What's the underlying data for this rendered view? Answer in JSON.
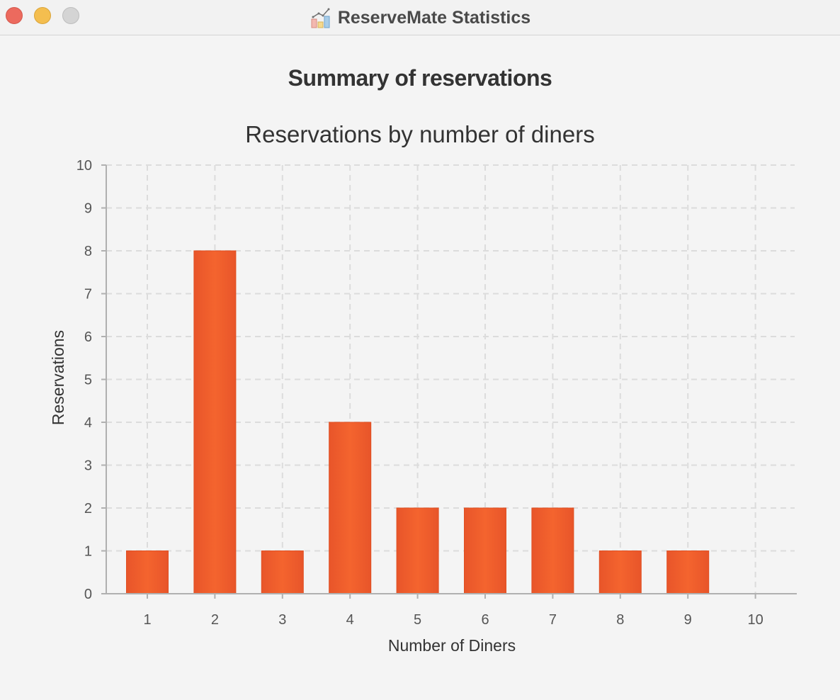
{
  "window": {
    "title": "ReserveMate Statistics",
    "icon": "chart-icon"
  },
  "page": {
    "heading": "Summary of reservations"
  },
  "chart_data": {
    "type": "bar",
    "title": "Reservations by number of diners",
    "xlabel": "Number of Diners",
    "ylabel": "Reservations",
    "categories": [
      "1",
      "2",
      "3",
      "4",
      "5",
      "6",
      "7",
      "8",
      "9",
      "10"
    ],
    "values": [
      1,
      8,
      1,
      4,
      2,
      2,
      2,
      1,
      1,
      0
    ],
    "ylim": [
      0,
      10
    ],
    "yticks": [
      "0",
      "1",
      "2",
      "3",
      "4",
      "5",
      "6",
      "7",
      "8",
      "9",
      "10"
    ],
    "grid": true,
    "legend": "none",
    "bar_color": "#f05f2c"
  }
}
